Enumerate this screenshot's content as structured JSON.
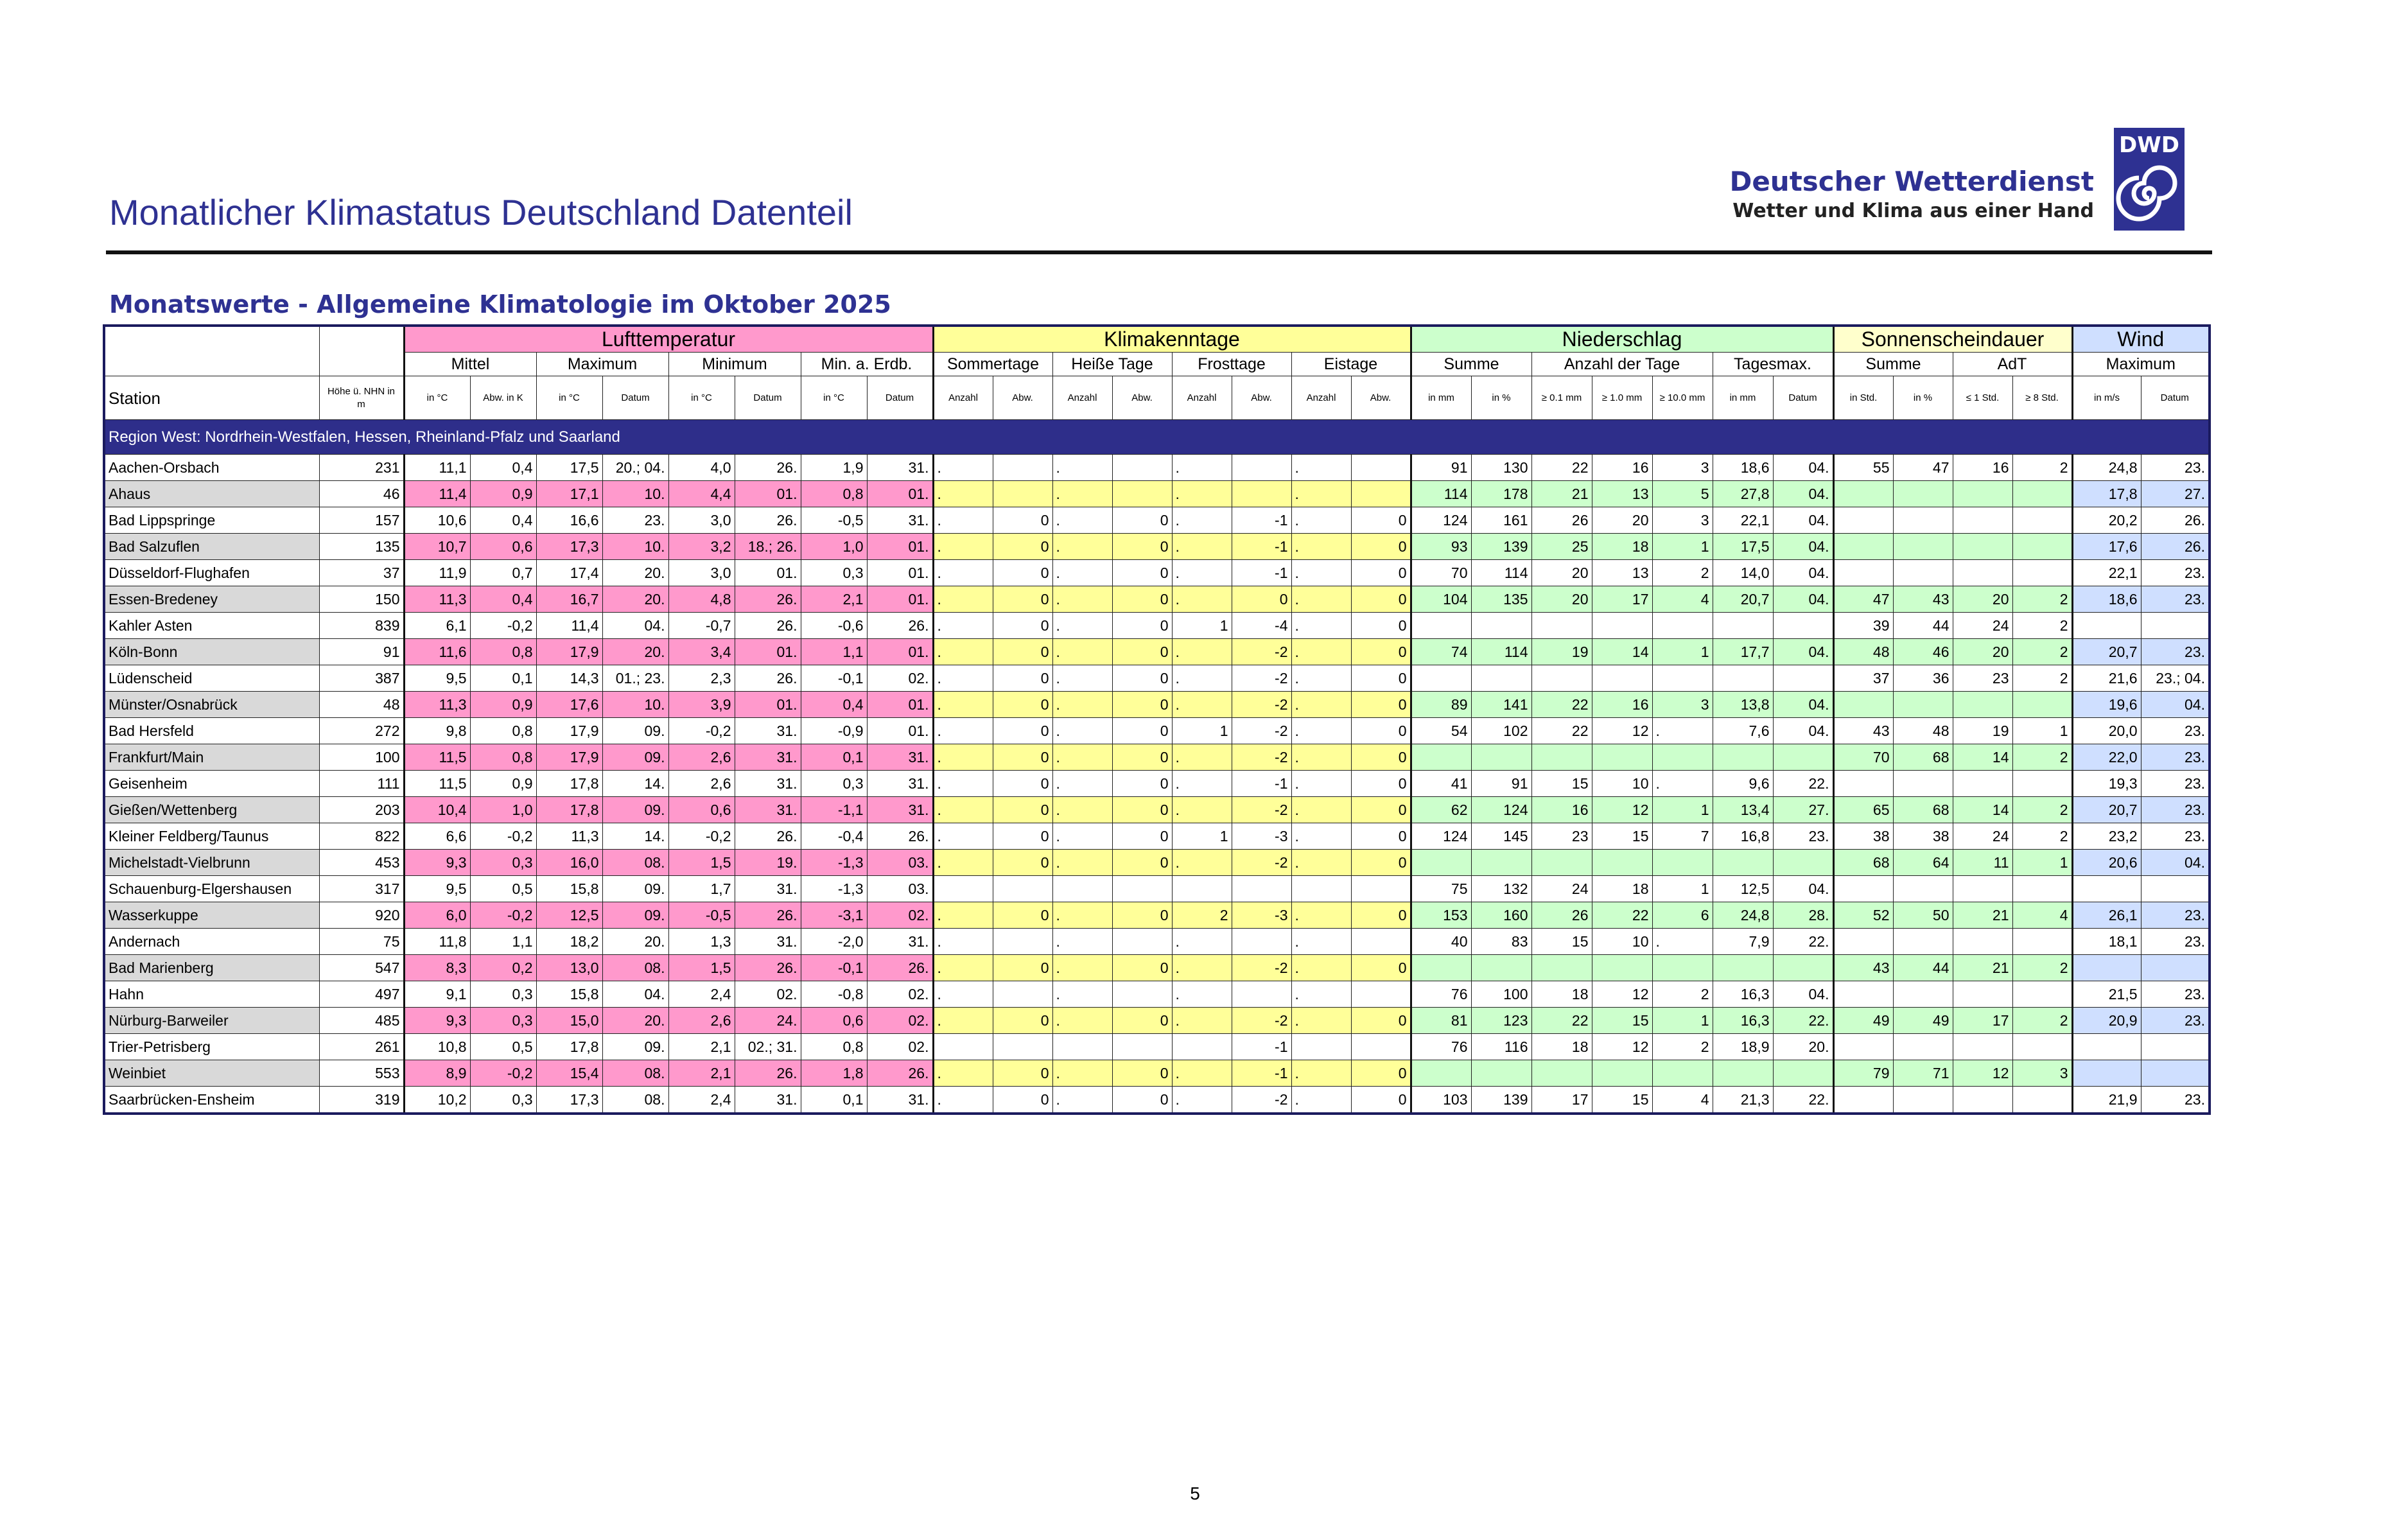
{
  "header": {
    "title": "Monatlicher Klimastatus Deutschland Datenteil",
    "brand": "Deutscher Wetterdienst",
    "slogan": "Wetter und Klima aus einer Hand",
    "logo": "DWD"
  },
  "subtitle": "Monatswerte - Allgemeine Klimatologie im Oktober 2025",
  "table": {
    "groups": [
      "Lufttemperatur",
      "Klimakenntage",
      "Niederschlag",
      "Sonnenscheindauer",
      "Wind"
    ],
    "subgroups": [
      "Mittel",
      "Maximum",
      "Minimum",
      "Min. a. Erdb.",
      "Sommertage",
      "Heiße Tage",
      "Frosttage",
      "Eistage",
      "Summe",
      "Anzahl der Tage",
      "Tagesmax.",
      "Summe",
      "AdT",
      "Maximum"
    ],
    "station_label": "Station",
    "height_label": "Höhe ü. NHN in m",
    "units": [
      "in °C",
      "Abw. in K",
      "in °C",
      "Datum",
      "in °C",
      "Datum",
      "in °C",
      "Datum",
      "Anzahl",
      "Abw.",
      "Anzahl",
      "Abw.",
      "Anzahl",
      "Abw.",
      "Anzahl",
      "Abw.",
      "in mm",
      "in %",
      "≥ 0.1 mm",
      "≥ 1.0 mm",
      "≥ 10.0 mm",
      "in mm",
      "Datum",
      "in Std.",
      "in %",
      "≤ 1 Std.",
      "≥ 8 Std.",
      "in m/s",
      "Datum"
    ],
    "region": "Region West: Nordrhein-Westfalen, Hessen, Rheinland-Pfalz und Saarland",
    "rows": [
      [
        "Aachen-Orsbach",
        "231",
        "11,1",
        "0,4",
        "17,5",
        "20.; 04.",
        "4,0",
        "26.",
        "1,9",
        "31.",
        ".",
        null,
        ".",
        null,
        ".",
        null,
        ".",
        null,
        "91",
        "130",
        "22",
        "16",
        "3",
        "18,6",
        "04.",
        "55",
        "47",
        "16",
        "2",
        "24,8",
        "23."
      ],
      [
        "Ahaus",
        "46",
        "11,4",
        "0,9",
        "17,1",
        "10.",
        "4,4",
        "01.",
        "0,8",
        "01.",
        ".",
        null,
        ".",
        null,
        ".",
        null,
        ".",
        null,
        "114",
        "178",
        "21",
        "13",
        "5",
        "27,8",
        "04.",
        null,
        null,
        null,
        null,
        "17,8",
        "27."
      ],
      [
        "Bad Lippspringe",
        "157",
        "10,6",
        "0,4",
        "16,6",
        "23.",
        "3,0",
        "26.",
        "-0,5",
        "31.",
        ".",
        "0",
        ".",
        "0",
        ".",
        "-1",
        ".",
        "0",
        "124",
        "161",
        "26",
        "20",
        "3",
        "22,1",
        "04.",
        null,
        null,
        null,
        null,
        "20,2",
        "26."
      ],
      [
        "Bad Salzuflen",
        "135",
        "10,7",
        "0,6",
        "17,3",
        "10.",
        "3,2",
        "18.; 26.",
        "1,0",
        "01.",
        ".",
        "0",
        ".",
        "0",
        ".",
        "-1",
        ".",
        "0",
        "93",
        "139",
        "25",
        "18",
        "1",
        "17,5",
        "04.",
        null,
        null,
        null,
        null,
        "17,6",
        "26."
      ],
      [
        "Düsseldorf-Flughafen",
        "37",
        "11,9",
        "0,7",
        "17,4",
        "20.",
        "3,0",
        "01.",
        "0,3",
        "01.",
        ".",
        "0",
        ".",
        "0",
        ".",
        "-1",
        ".",
        "0",
        "70",
        "114",
        "20",
        "13",
        "2",
        "14,0",
        "04.",
        null,
        null,
        null,
        null,
        "22,1",
        "23."
      ],
      [
        "Essen-Bredeney",
        "150",
        "11,3",
        "0,4",
        "16,7",
        "20.",
        "4,8",
        "26.",
        "2,1",
        "01.",
        ".",
        "0",
        ".",
        "0",
        ".",
        "0",
        ".",
        "0",
        "104",
        "135",
        "20",
        "17",
        "4",
        "20,7",
        "04.",
        "47",
        "43",
        "20",
        "2",
        "18,6",
        "23."
      ],
      [
        "Kahler Asten",
        "839",
        "6,1",
        "-0,2",
        "11,4",
        "04.",
        "-0,7",
        "26.",
        "-0,6",
        "26.",
        ".",
        "0",
        ".",
        "0",
        "1",
        "-4",
        ".",
        "0",
        null,
        null,
        null,
        null,
        null,
        null,
        null,
        "39",
        "44",
        "24",
        "2",
        null,
        null
      ],
      [
        "Köln-Bonn",
        "91",
        "11,6",
        "0,8",
        "17,9",
        "20.",
        "3,4",
        "01.",
        "1,1",
        "01.",
        ".",
        "0",
        ".",
        "0",
        ".",
        "-2",
        ".",
        "0",
        "74",
        "114",
        "19",
        "14",
        "1",
        "17,7",
        "04.",
        "48",
        "46",
        "20",
        "2",
        "20,7",
        "23."
      ],
      [
        "Lüdenscheid",
        "387",
        "9,5",
        "0,1",
        "14,3",
        "01.; 23.",
        "2,3",
        "26.",
        "-0,1",
        "02.",
        ".",
        "0",
        ".",
        "0",
        ".",
        "-2",
        ".",
        "0",
        null,
        null,
        null,
        null,
        null,
        null,
        null,
        "37",
        "36",
        "23",
        "2",
        "21,6",
        "23.; 04."
      ],
      [
        "Münster/Osnabrück",
        "48",
        "11,3",
        "0,9",
        "17,6",
        "10.",
        "3,9",
        "01.",
        "0,4",
        "01.",
        ".",
        "0",
        ".",
        "0",
        ".",
        "-2",
        ".",
        "0",
        "89",
        "141",
        "22",
        "16",
        "3",
        "13,8",
        "04.",
        null,
        null,
        null,
        null,
        "19,6",
        "04."
      ],
      [
        "Bad Hersfeld",
        "272",
        "9,8",
        "0,8",
        "17,9",
        "09.",
        "-0,2",
        "31.",
        "-0,9",
        "01.",
        ".",
        "0",
        ".",
        "0",
        "1",
        "-2",
        ".",
        "0",
        "54",
        "102",
        "22",
        "12",
        ".",
        "7,6",
        "04.",
        "43",
        "48",
        "19",
        "1",
        "20,0",
        "23."
      ],
      [
        "Frankfurt/Main",
        "100",
        "11,5",
        "0,8",
        "17,9",
        "09.",
        "2,6",
        "31.",
        "0,1",
        "31.",
        ".",
        "0",
        ".",
        "0",
        ".",
        "-2",
        ".",
        "0",
        null,
        null,
        null,
        null,
        null,
        null,
        null,
        "70",
        "68",
        "14",
        "2",
        "22,0",
        "23."
      ],
      [
        "Geisenheim",
        "111",
        "11,5",
        "0,9",
        "17,8",
        "14.",
        "2,6",
        "31.",
        "0,3",
        "31.",
        ".",
        "0",
        ".",
        "0",
        ".",
        "-1",
        ".",
        "0",
        "41",
        "91",
        "15",
        "10",
        ".",
        "9,6",
        "22.",
        null,
        null,
        null,
        null,
        "19,3",
        "23."
      ],
      [
        "Gießen/Wettenberg",
        "203",
        "10,4",
        "1,0",
        "17,8",
        "09.",
        "0,6",
        "31.",
        "-1,1",
        "31.",
        ".",
        "0",
        ".",
        "0",
        ".",
        "-2",
        ".",
        "0",
        "62",
        "124",
        "16",
        "12",
        "1",
        "13,4",
        "27.",
        "65",
        "68",
        "14",
        "2",
        "20,7",
        "23."
      ],
      [
        "Kleiner Feldberg/Taunus",
        "822",
        "6,6",
        "-0,2",
        "11,3",
        "14.",
        "-0,2",
        "26.",
        "-0,4",
        "26.",
        ".",
        "0",
        ".",
        "0",
        "1",
        "-3",
        ".",
        "0",
        "124",
        "145",
        "23",
        "15",
        "7",
        "16,8",
        "23.",
        "38",
        "38",
        "24",
        "2",
        "23,2",
        "23."
      ],
      [
        "Michelstadt-Vielbrunn",
        "453",
        "9,3",
        "0,3",
        "16,0",
        "08.",
        "1,5",
        "19.",
        "-1,3",
        "03.",
        ".",
        "0",
        ".",
        "0",
        ".",
        "-2",
        ".",
        "0",
        null,
        null,
        null,
        null,
        null,
        null,
        null,
        "68",
        "64",
        "11",
        "1",
        "20,6",
        "04."
      ],
      [
        "Schauenburg-Elgershausen",
        "317",
        "9,5",
        "0,5",
        "15,8",
        "09.",
        "1,7",
        "31.",
        "-1,3",
        "03.",
        null,
        null,
        null,
        null,
        null,
        null,
        null,
        null,
        "75",
        "132",
        "24",
        "18",
        "1",
        "12,5",
        "04.",
        null,
        null,
        null,
        null,
        null,
        null
      ],
      [
        "Wasserkuppe",
        "920",
        "6,0",
        "-0,2",
        "12,5",
        "09.",
        "-0,5",
        "26.",
        "-3,1",
        "02.",
        ".",
        "0",
        ".",
        "0",
        "2",
        "-3",
        ".",
        "0",
        "153",
        "160",
        "26",
        "22",
        "6",
        "24,8",
        "28.",
        "52",
        "50",
        "21",
        "4",
        "26,1",
        "23."
      ],
      [
        "Andernach",
        "75",
        "11,8",
        "1,1",
        "18,2",
        "20.",
        "1,3",
        "31.",
        "-2,0",
        "31.",
        ".",
        null,
        ".",
        null,
        ".",
        null,
        ".",
        null,
        "40",
        "83",
        "15",
        "10",
        ".",
        "7,9",
        "22.",
        null,
        null,
        null,
        null,
        "18,1",
        "23."
      ],
      [
        "Bad Marienberg",
        "547",
        "8,3",
        "0,2",
        "13,0",
        "08.",
        "1,5",
        "26.",
        "-0,1",
        "26.",
        ".",
        "0",
        ".",
        "0",
        ".",
        "-2",
        ".",
        "0",
        null,
        null,
        null,
        null,
        null,
        null,
        null,
        "43",
        "44",
        "21",
        "2",
        null,
        null
      ],
      [
        "Hahn",
        "497",
        "9,1",
        "0,3",
        "15,8",
        "04.",
        "2,4",
        "02.",
        "-0,8",
        "02.",
        ".",
        null,
        ".",
        null,
        ".",
        null,
        ".",
        null,
        "76",
        "100",
        "18",
        "12",
        "2",
        "16,3",
        "04.",
        null,
        null,
        null,
        null,
        "21,5",
        "23."
      ],
      [
        "Nürburg-Barweiler",
        "485",
        "9,3",
        "0,3",
        "15,0",
        "20.",
        "2,6",
        "24.",
        "0,6",
        "02.",
        ".",
        "0",
        ".",
        "0",
        ".",
        "-2",
        ".",
        "0",
        "81",
        "123",
        "22",
        "15",
        "1",
        "16,3",
        "22.",
        "49",
        "49",
        "17",
        "2",
        "20,9",
        "23."
      ],
      [
        "Trier-Petrisberg",
        "261",
        "10,8",
        "0,5",
        "17,8",
        "09.",
        "2,1",
        "02.; 31.",
        "0,8",
        "02.",
        null,
        null,
        null,
        null,
        null,
        "-1",
        null,
        null,
        "76",
        "116",
        "18",
        "12",
        "2",
        "18,9",
        "20.",
        null,
        null,
        null,
        null,
        null,
        null
      ],
      [
        "Weinbiet",
        "553",
        "8,9",
        "-0,2",
        "15,4",
        "08.",
        "2,1",
        "26.",
        "1,8",
        "26.",
        ".",
        "0",
        ".",
        "0",
        ".",
        "-1",
        ".",
        "0",
        null,
        null,
        null,
        null,
        null,
        null,
        null,
        "79",
        "71",
        "12",
        "3",
        null,
        null
      ],
      [
        "Saarbrücken-Ensheim",
        "319",
        "10,2",
        "0,3",
        "17,3",
        "08.",
        "2,4",
        "31.",
        "0,1",
        "31.",
        ".",
        "0",
        ".",
        "0",
        ".",
        "-2",
        ".",
        "0",
        "103",
        "139",
        "17",
        "15",
        "4",
        "21,3",
        "22.",
        null,
        null,
        null,
        null,
        "21,9",
        "23."
      ]
    ]
  },
  "page_number": "5"
}
